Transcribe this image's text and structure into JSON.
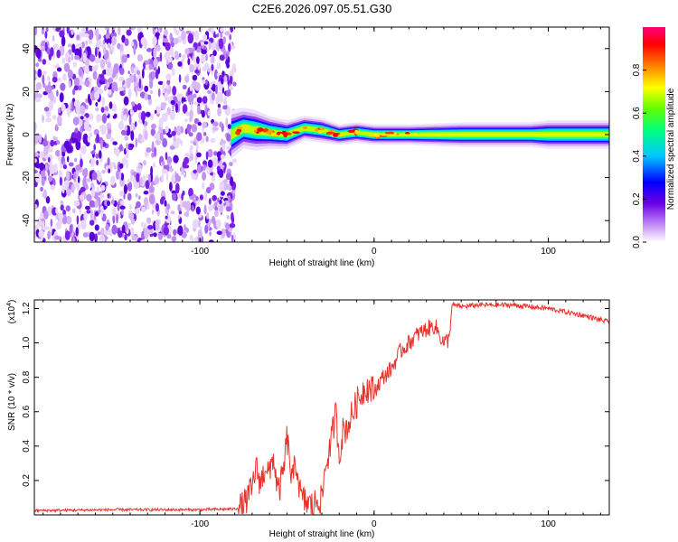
{
  "figure": {
    "title": "C2E6.2026.097.05.51.G30"
  },
  "chart_data": [
    {
      "type": "heatmap",
      "name": "spectrogram",
      "xlabel": "Height of straight line (km)",
      "ylabel": "Frequency (Hz)",
      "xlim": [
        -195,
        135
      ],
      "ylim": [
        -50,
        50
      ],
      "x_ticks": [
        -100,
        0,
        100
      ],
      "x_tick_labels": [
        "-100",
        "0",
        "100"
      ],
      "y_ticks": [
        -40,
        -20,
        0,
        20,
        40
      ],
      "y_tick_labels": [
        "-40",
        "-20",
        "0",
        "20",
        "40"
      ],
      "noise_region_x": [
        -195,
        -80
      ],
      "signal_ridge": {
        "x": [
          -82,
          -75,
          -68,
          -60,
          -50,
          -40,
          -30,
          -20,
          -10,
          0,
          20,
          50,
          90,
          100,
          135
        ],
        "center_hz": [
          0,
          3,
          2,
          1,
          0,
          3,
          2,
          0,
          1,
          0,
          0,
          0,
          0,
          0,
          0
        ],
        "halfwidth_hz": [
          6,
          5,
          5,
          4,
          3.5,
          3,
          3,
          2.5,
          2.5,
          2.5,
          2.5,
          3,
          3,
          3.5,
          3.5
        ]
      },
      "colorbar": {
        "label": "Normalized spectral amplitude",
        "range": [
          0,
          1
        ],
        "ticks": [
          0.0,
          0.2,
          0.4,
          0.6,
          0.8
        ],
        "tick_labels": [
          "0.0",
          "0.2",
          "0.4",
          "0.6",
          "0.8"
        ]
      }
    },
    {
      "type": "line",
      "name": "snr",
      "xlabel": "Height of straight line (km)",
      "ylabel": "SNR (10 * v/v)",
      "y_exponent_label": "(x10",
      "y_exponent_power": "4",
      "y_exponent_close": ")",
      "xlim": [
        -195,
        135
      ],
      "ylim": [
        0,
        1.25
      ],
      "x_ticks": [
        -100,
        0,
        100
      ],
      "x_tick_labels": [
        "-100",
        "0",
        "100"
      ],
      "y_ticks": [
        0.2,
        0.4,
        0.6,
        0.8,
        1.0,
        1.2
      ],
      "y_tick_labels": [
        "0.2",
        "0.4",
        "0.6",
        "0.8",
        "1.0",
        "1.2"
      ],
      "color": "#e8332c",
      "series": [
        {
          "name": "SNR",
          "x": [
            -195,
            -150,
            -100,
            -80,
            -75,
            -70,
            -68,
            -65,
            -62,
            -60,
            -58,
            -55,
            -52,
            -50,
            -47,
            -45,
            -42,
            -40,
            -35,
            -32,
            -30,
            -28,
            -25,
            -22,
            -20,
            -18,
            -15,
            -12,
            -10,
            -5,
            0,
            5,
            10,
            15,
            20,
            25,
            30,
            35,
            40,
            43,
            44,
            45,
            50,
            60,
            80,
            100,
            110,
            120,
            135
          ],
          "values": [
            0.025,
            0.03,
            0.03,
            0.035,
            0.05,
            0.15,
            0.28,
            0.18,
            0.3,
            0.22,
            0.35,
            0.12,
            0.25,
            0.45,
            0.18,
            0.32,
            0.1,
            0.08,
            0.05,
            0.1,
            0.08,
            0.28,
            0.4,
            0.6,
            0.35,
            0.48,
            0.52,
            0.6,
            0.65,
            0.75,
            0.72,
            0.8,
            0.85,
            0.95,
            1.0,
            1.05,
            1.08,
            1.1,
            1.0,
            1.02,
            1.15,
            1.22,
            1.21,
            1.22,
            1.22,
            1.2,
            1.18,
            1.16,
            1.12
          ]
        }
      ]
    }
  ]
}
